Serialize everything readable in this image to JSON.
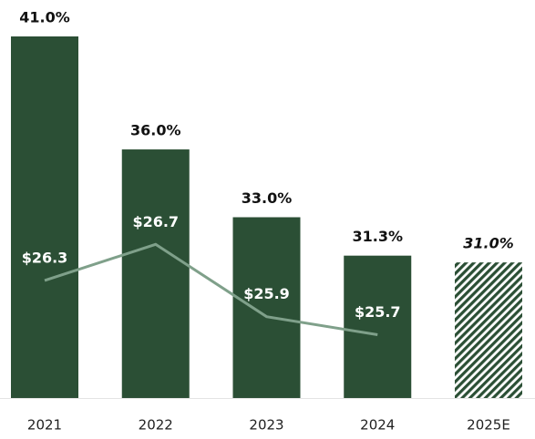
{
  "chart_data": {
    "type": "bar",
    "categories": [
      "2021",
      "2022",
      "2023",
      "2024",
      "2025E"
    ],
    "series": [
      {
        "type": "bar",
        "color": "#2b4f35",
        "values": [
          41.0,
          36.0,
          33.0,
          31.3,
          31.0
        ],
        "value_labels": [
          "41.0%",
          "36.0%",
          "33.0%",
          "31.3%",
          "31.0%"
        ],
        "hatch": [
          false,
          false,
          false,
          false,
          true
        ]
      },
      {
        "type": "line",
        "axis": "y2",
        "color": "#7fa08a",
        "values": [
          26.3,
          26.7,
          25.9,
          25.7,
          null
        ],
        "value_labels": [
          "$26.3",
          "$26.7",
          "$25.9",
          "$25.7",
          null
        ]
      }
    ],
    "ylim": [
      25,
      41
    ],
    "y2lim": [
      25,
      29
    ]
  }
}
